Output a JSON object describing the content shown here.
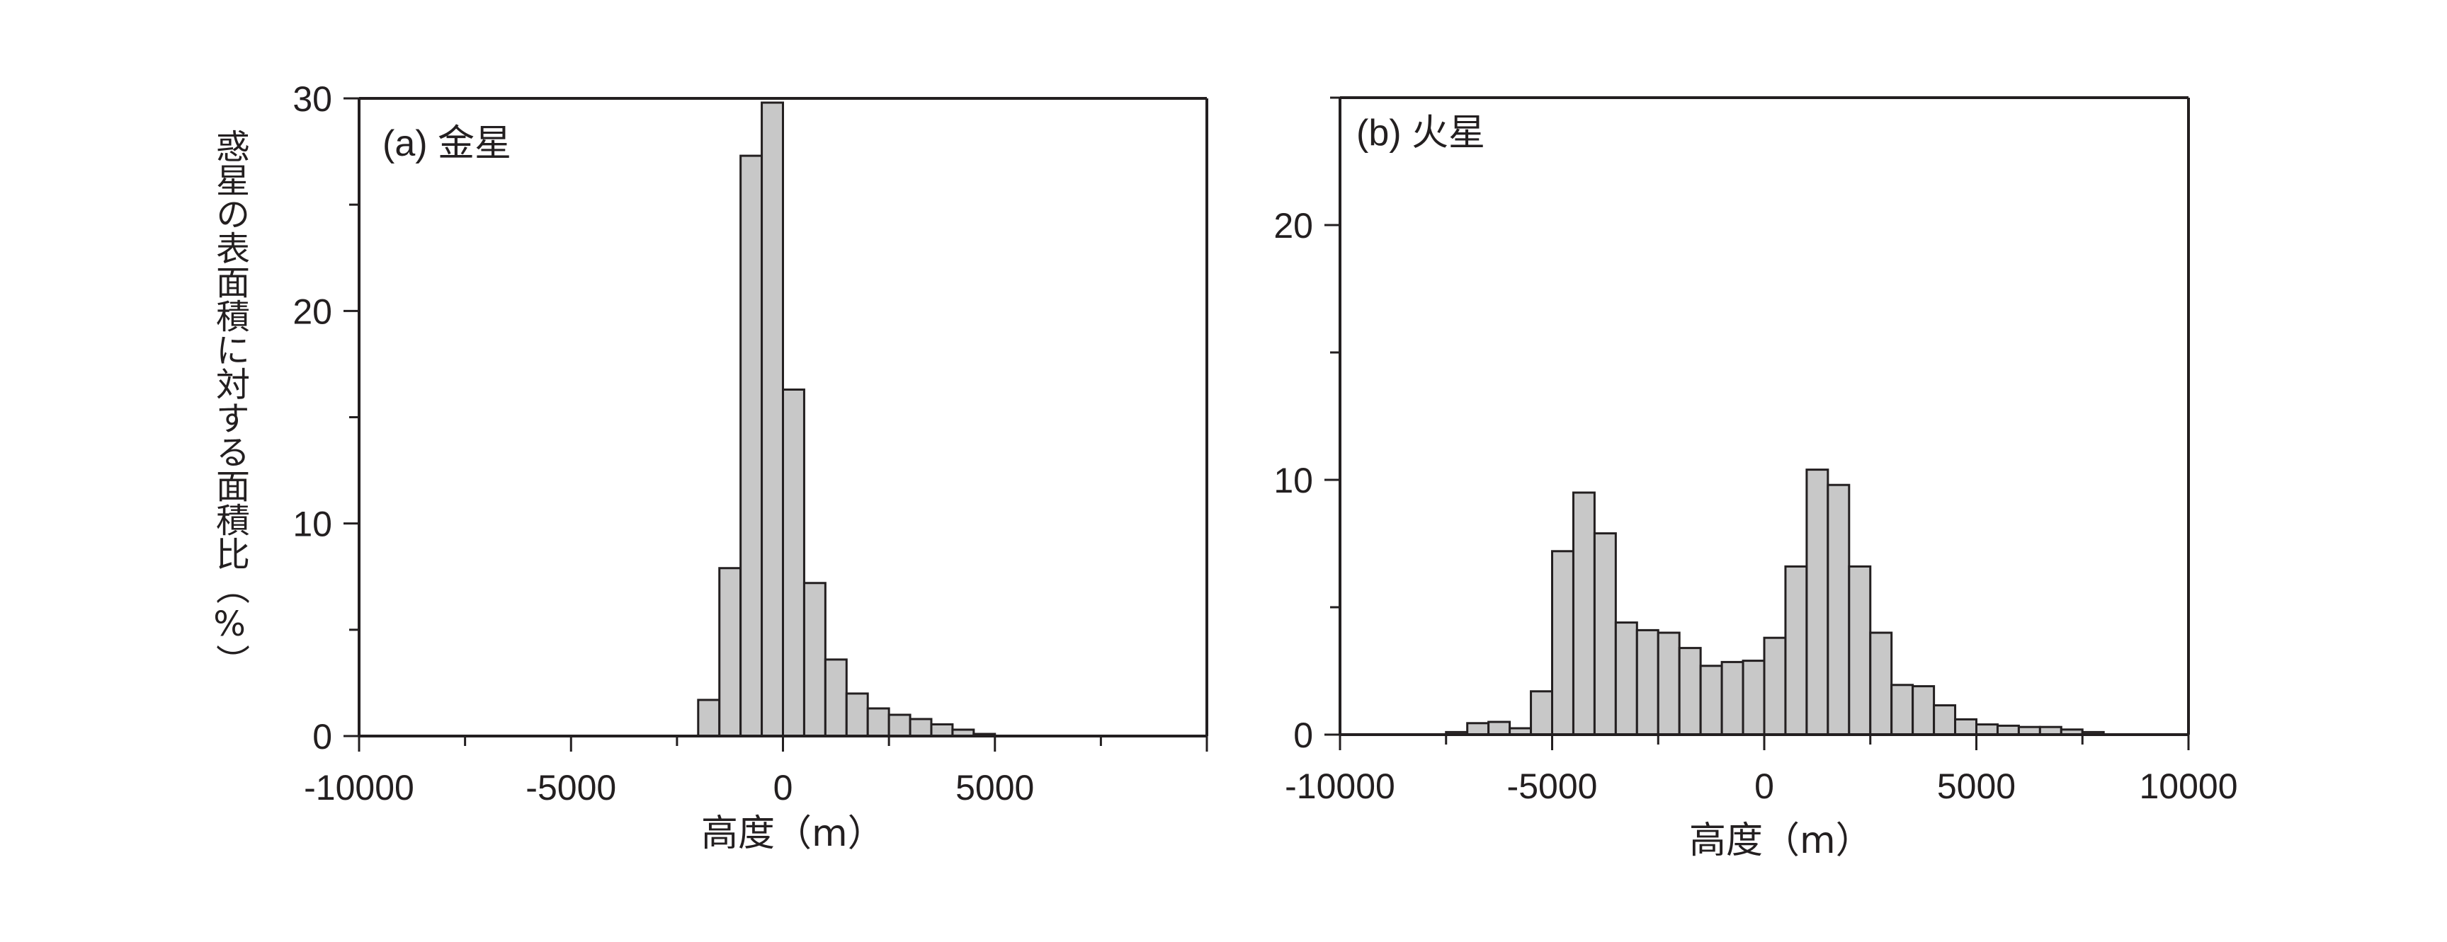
{
  "colors": {
    "bar_fill": "#c8c8c8",
    "bar_stroke": "#231f20",
    "axis": "#231f20",
    "background": "#ffffff"
  },
  "figure": {
    "ylabel": "惑星の表面積に対する面積比（%）"
  },
  "chart_data": [
    {
      "type": "bar",
      "title": "(a) 金星",
      "xlabel": "高度（m）",
      "ylabel": "惑星の表面積に対する面積比（%）",
      "xlim": [
        -10000,
        10000
      ],
      "ylim": [
        0,
        30
      ],
      "bin_width": 500,
      "x_ticks": [
        -10000,
        -5000,
        0,
        5000
      ],
      "x_tick_labels": [
        "-10000",
        "-5000",
        "0",
        "5000"
      ],
      "y_ticks": [
        0,
        10,
        20,
        30
      ],
      "y_tick_labels": [
        "0",
        "10",
        "20",
        "30"
      ],
      "grid": false,
      "bins": [
        {
          "start": -2000,
          "value": 1.7
        },
        {
          "start": -1500,
          "value": 7.9
        },
        {
          "start": -1000,
          "value": 27.3
        },
        {
          "start": -500,
          "value": 29.8
        },
        {
          "start": 0,
          "value": 16.3
        },
        {
          "start": 500,
          "value": 7.2
        },
        {
          "start": 1000,
          "value": 3.6
        },
        {
          "start": 1500,
          "value": 2.0
        },
        {
          "start": 2000,
          "value": 1.3
        },
        {
          "start": 2500,
          "value": 1.0
        },
        {
          "start": 3000,
          "value": 0.8
        },
        {
          "start": 3500,
          "value": 0.55
        },
        {
          "start": 4000,
          "value": 0.3
        },
        {
          "start": 4500,
          "value": 0.1
        }
      ]
    },
    {
      "type": "bar",
      "title": "(b) 火星",
      "xlabel": "高度（m）",
      "ylabel": "惑星の表面積に対する面積比（%）",
      "xlim": [
        -10000,
        10000
      ],
      "ylim": [
        0,
        25
      ],
      "bin_width": 500,
      "x_ticks": [
        -10000,
        -5000,
        0,
        5000,
        10000
      ],
      "x_tick_labels": [
        "-10000",
        "-5000",
        "0",
        "5000",
        "10000"
      ],
      "y_ticks": [
        0,
        10,
        20
      ],
      "y_tick_labels": [
        "0",
        "10",
        "20"
      ],
      "grid": false,
      "bins": [
        {
          "start": -7500,
          "value": 0.1
        },
        {
          "start": -7000,
          "value": 0.45
        },
        {
          "start": -6500,
          "value": 0.5
        },
        {
          "start": -6000,
          "value": 0.25
        },
        {
          "start": -5500,
          "value": 1.7
        },
        {
          "start": -5000,
          "value": 7.2
        },
        {
          "start": -4500,
          "value": 9.5
        },
        {
          "start": -4000,
          "value": 7.9
        },
        {
          "start": -3500,
          "value": 4.4
        },
        {
          "start": -3000,
          "value": 4.1
        },
        {
          "start": -2500,
          "value": 4.0
        },
        {
          "start": -2000,
          "value": 3.4
        },
        {
          "start": -1500,
          "value": 2.7
        },
        {
          "start": -1000,
          "value": 2.85
        },
        {
          "start": -500,
          "value": 2.9
        },
        {
          "start": 0,
          "value": 3.8
        },
        {
          "start": 500,
          "value": 6.6
        },
        {
          "start": 1000,
          "value": 10.4
        },
        {
          "start": 1500,
          "value": 9.8
        },
        {
          "start": 2000,
          "value": 6.6
        },
        {
          "start": 2500,
          "value": 4.0
        },
        {
          "start": 3000,
          "value": 1.95
        },
        {
          "start": 3500,
          "value": 1.9
        },
        {
          "start": 4000,
          "value": 1.15
        },
        {
          "start": 4500,
          "value": 0.6
        },
        {
          "start": 5000,
          "value": 0.4
        },
        {
          "start": 5500,
          "value": 0.35
        },
        {
          "start": 6000,
          "value": 0.3
        },
        {
          "start": 6500,
          "value": 0.3
        },
        {
          "start": 7000,
          "value": 0.2
        },
        {
          "start": 7500,
          "value": 0.1
        }
      ]
    }
  ]
}
